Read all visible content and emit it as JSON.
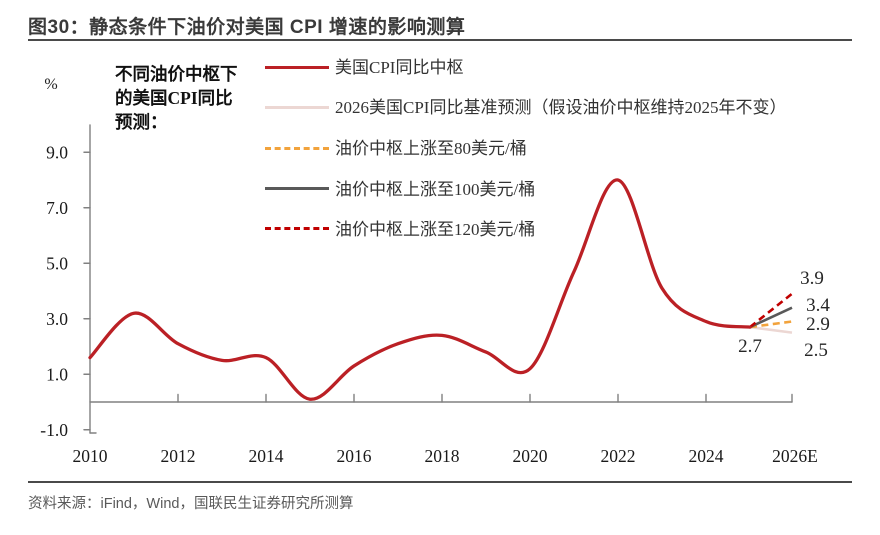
{
  "header": {
    "title": "图30：静态条件下油价对美国 CPI 增速的影响测算"
  },
  "annotation": {
    "lines": [
      "不同油价中枢下",
      "的美国CPI同比",
      "预测："
    ]
  },
  "legend": {
    "items": [
      {
        "label": "美国CPI同比中枢",
        "color": "#bb2025",
        "style": "solid"
      },
      {
        "label": "2026美国CPI同比基准预测（假设油价中枢维持2025年不变）",
        "color": "#ecd7d3",
        "style": "solid"
      },
      {
        "label": "油价中枢上涨至80美元/桶",
        "color": "#f2a33c",
        "style": "dashed"
      },
      {
        "label": "油价中枢上涨至100美元/桶",
        "color": "#595959",
        "style": "solid"
      },
      {
        "label": "油价中枢上涨至120美元/桶",
        "color": "#c00000",
        "style": "dashed"
      }
    ]
  },
  "chart_data": {
    "type": "line",
    "unit_label": "%",
    "x_tick_labels": [
      "2010",
      "2012",
      "2014",
      "2016",
      "2018",
      "2020",
      "2022",
      "2024",
      "2026E"
    ],
    "x_range": [
      2010,
      2026
    ],
    "y_ticks": [
      -1.0,
      1.0,
      3.0,
      5.0,
      7.0,
      9.0
    ],
    "ylim": [
      -1.0,
      9.8
    ],
    "grid": false,
    "legend_position": "top",
    "history": {
      "name": "美国CPI同比中枢",
      "color": "#bb2025",
      "style": "solid",
      "years": [
        2010,
        2011,
        2012,
        2013,
        2014,
        2015,
        2016,
        2017,
        2018,
        2019,
        2020,
        2021,
        2022,
        2023,
        2024,
        2025
      ],
      "values": [
        1.6,
        3.2,
        2.1,
        1.5,
        1.6,
        0.1,
        1.3,
        2.1,
        2.4,
        1.8,
        1.2,
        4.7,
        8.0,
        4.1,
        2.9,
        2.7
      ]
    },
    "branch_point": {
      "year": 2025,
      "value": 2.7,
      "label": "2.7"
    },
    "forecasts": [
      {
        "name": "2026美国CPI同比基准预测（假设油价中枢维持2025年不变）",
        "color": "#ecd7d3",
        "style": "solid",
        "year": 2026,
        "value": 2.5,
        "label": "2.5"
      },
      {
        "name": "油价中枢上涨至80美元/桶",
        "color": "#f2a33c",
        "style": "dashed",
        "year": 2026,
        "value": 2.9,
        "label": "2.9"
      },
      {
        "name": "油价中枢上涨至100美元/桶",
        "color": "#595959",
        "style": "solid",
        "year": 2026,
        "value": 3.4,
        "label": "3.4"
      },
      {
        "name": "油价中枢上涨至120美元/桶",
        "color": "#c00000",
        "style": "dashed",
        "year": 2026,
        "value": 3.9,
        "label": "3.9"
      }
    ]
  },
  "footer": {
    "source": "资料来源：iFind，Wind，国联民生证券研究所测算"
  }
}
